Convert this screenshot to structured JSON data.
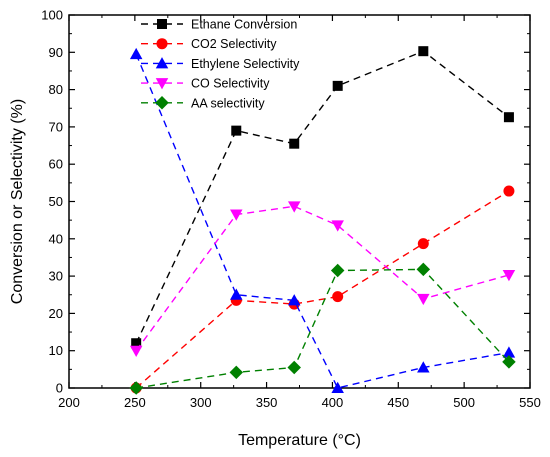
{
  "chart_data": {
    "type": "line",
    "xlabel": "Temperature (°C)",
    "ylabel": "Conversion or Selectivity (%)",
    "xlim": [
      200,
      550
    ],
    "ylim": [
      0,
      100
    ],
    "xticks": [
      200,
      250,
      300,
      350,
      400,
      450,
      500,
      550
    ],
    "yticks": [
      0,
      10,
      20,
      30,
      40,
      50,
      60,
      70,
      80,
      90,
      100
    ],
    "grid": false,
    "legend_position": "top-center",
    "series": [
      {
        "name": "Ethane Conversion",
        "color": "#000000",
        "marker": "square",
        "x": [
          251,
          327,
          371,
          404,
          469,
          534
        ],
        "y": [
          12,
          69,
          65.5,
          81,
          90.3,
          72.6
        ]
      },
      {
        "name": "CO2 Selectivity",
        "color": "#ff0000",
        "marker": "circle",
        "x": [
          251,
          327,
          371,
          404,
          469,
          534
        ],
        "y": [
          0,
          23.5,
          22.5,
          24.5,
          38.7,
          52.8
        ]
      },
      {
        "name": "Ethylene Selectivity",
        "color": "#0000ff",
        "marker": "triangle-up",
        "x": [
          251,
          327,
          371,
          404,
          469,
          534
        ],
        "y": [
          89.5,
          25,
          23.5,
          0,
          5.5,
          9.5
        ]
      },
      {
        "name": "CO Selectivity",
        "color": "#ff00ff",
        "marker": "triangle-down",
        "x": [
          251,
          327,
          371,
          404,
          469,
          534
        ],
        "y": [
          10,
          46.5,
          48.7,
          43.6,
          23.9,
          30.3
        ]
      },
      {
        "name": "AA selectivity",
        "color": "#008000",
        "marker": "diamond",
        "x": [
          251,
          327,
          371,
          404,
          469,
          534
        ],
        "y": [
          0,
          4.2,
          5.5,
          31.5,
          31.8,
          7
        ]
      }
    ]
  }
}
